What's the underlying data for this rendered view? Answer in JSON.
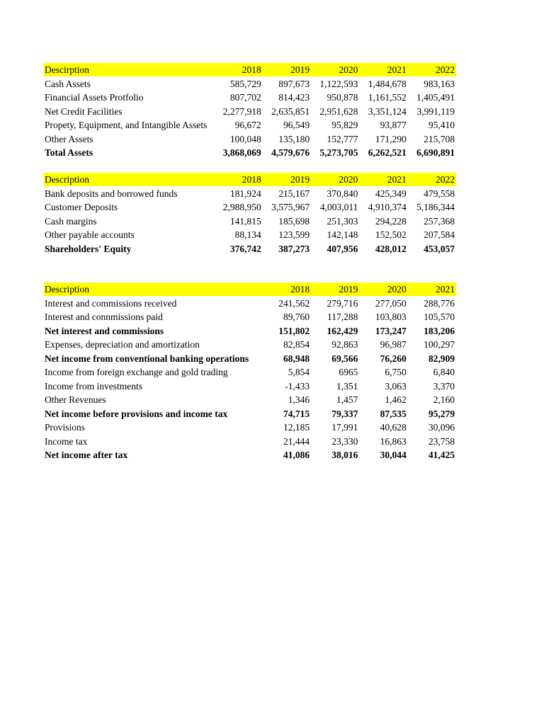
{
  "tables": [
    {
      "header": [
        "Descirption",
        "2018",
        "2019",
        "2020",
        "2021",
        "2022"
      ],
      "rows": [
        [
          "Cash Assets",
          "585,729",
          "897,673",
          "1,122,593",
          "1,484,678",
          "983,163"
        ],
        [
          "Financial Assets Protfolio",
          "807,702",
          "814,423",
          "950,878",
          "1,161,552",
          "1,405,491"
        ],
        [
          "Net Credit Facilities",
          "2,277,918",
          "2,635,851",
          "2,951,628",
          "3,351,124",
          "3,991,119"
        ],
        [
          "Propety, Equipment, and Intangible Assets",
          "96,672",
          "96,549",
          "95,829",
          "93,877",
          "95,410"
        ],
        [
          "Other Assets",
          "100,048",
          "135,180",
          "152,777",
          "171,290",
          "215,708"
        ],
        [
          "Total Assets",
          "3,868,069",
          "4,579,676",
          "5,273,705",
          "6,262,521",
          "6,690,891"
        ]
      ],
      "bold_rows": [
        5
      ]
    },
    {
      "header": [
        "Description",
        "2018",
        "2019",
        "2020",
        "2021",
        "2022"
      ],
      "rows": [
        [
          "Bank deposits and borrowed funds",
          "181,924",
          "215,167",
          "370,840",
          "425,349",
          "479,558"
        ],
        [
          "Customer Deposits",
          "2,988,950",
          "3,575,967",
          "4,003,011",
          "4,910,374",
          "5,186,344"
        ],
        [
          "Cash margins",
          "141,815",
          "185,698",
          "251,303",
          "294,228",
          "257,368"
        ],
        [
          "Other payable accounts",
          "88,134",
          "123,599",
          "142,148",
          "152,502",
          "207,584"
        ],
        [
          "Shareholders' Equity",
          "376,742",
          "387,273",
          "407,956",
          "428,012",
          "453,057"
        ]
      ],
      "bold_rows": [
        4
      ]
    },
    {
      "header": [
        "Description",
        "2018",
        "2019",
        "2020",
        "2021"
      ],
      "rows": [
        [
          "Interest and commissions received",
          "241,562",
          "279,716",
          "277,050",
          "288,776"
        ],
        [
          "Interest and connmissions paid",
          "89,760",
          "117,288",
          "103,803",
          "105,570"
        ],
        [
          "Net interest and commissions",
          "151,802",
          "162,429",
          "173,247",
          "183,206"
        ],
        [
          "Expenses, depreciation and amortization",
          "82,854",
          "92,863",
          "96,987",
          "100,297"
        ],
        [
          "Net income from conventional banking operations",
          "68,948",
          "69,566",
          "76,260",
          "82,909"
        ],
        [
          "Income from foreign exchange and gold trading",
          "5,854",
          "6965",
          "6,750",
          "6,840"
        ],
        [
          "Income from investments",
          "-1,433",
          "1,351",
          "3,063",
          "3,370"
        ],
        [
          "Other Revenues",
          "1,346",
          "1,457",
          "1,462",
          "2,160"
        ],
        [
          "Net income before provisions and income tax",
          "74,715",
          "79,337",
          "87,535",
          "95,279"
        ],
        [
          "Provisions",
          "12,185",
          "17,991",
          "40,628",
          "30,096"
        ],
        [
          "Income tax",
          "21,444",
          "23,330",
          "16,863",
          "23,758"
        ],
        [
          "Net income after tax",
          "41,086",
          "38,016",
          "30,044",
          "41,425"
        ]
      ],
      "bold_rows": [
        2,
        4,
        8,
        11
      ]
    }
  ]
}
